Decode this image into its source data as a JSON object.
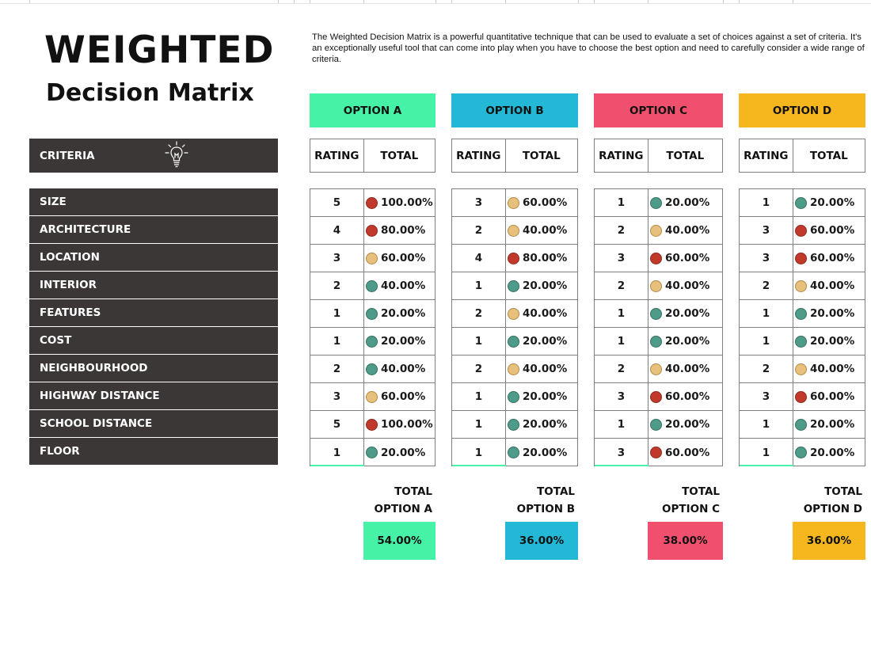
{
  "title": {
    "main": "WEIGHTED",
    "sub": "Decision Matrix",
    "description": "The Weighted Decision Matrix is a powerful quantitative technique that can be used to evaluate a set of choices against a set of criteria. It's an exceptionally useful tool that can come into play when you have to choose the best option and need to carefully consider a wide range of criteria."
  },
  "criteria": {
    "header": "CRITERIA",
    "icon": "lightbulb-icon",
    "items": [
      "SIZE",
      "ARCHITECTURE",
      "LOCATION",
      "INTERIOR",
      "FEATURES",
      "COST",
      "NEIGHBOURHOOD",
      "HIGHWAY DISTANCE",
      "SCHOOL DISTANCE",
      "FLOOR"
    ]
  },
  "columns": {
    "rating": "RATING",
    "total": "TOTAL"
  },
  "status_colors": {
    "red": "#c0392b",
    "amber": "#e7c07c",
    "green": "#4f9b8a"
  },
  "options": [
    {
      "name": "OPTION A",
      "color": "#45f2a6",
      "ratings": [
        "5",
        "4",
        "3",
        "2",
        "1",
        "1",
        "2",
        "3",
        "5",
        "1"
      ],
      "totals": [
        "100.00%",
        "80.00%",
        "60.00%",
        "40.00%",
        "20.00%",
        "20.00%",
        "40.00%",
        "60.00%",
        "100.00%",
        "20.00%"
      ],
      "status": [
        "red",
        "red",
        "amber",
        "green",
        "green",
        "green",
        "green",
        "amber",
        "red",
        "green"
      ],
      "total_label_1": "TOTAL",
      "total_label_2": "OPTION A",
      "total_value": "54.00%"
    },
    {
      "name": "OPTION B",
      "color": "#22b8d6",
      "ratings": [
        "3",
        "2",
        "4",
        "1",
        "2",
        "1",
        "2",
        "1",
        "1",
        "1"
      ],
      "totals": [
        "60.00%",
        "40.00%",
        "80.00%",
        "20.00%",
        "40.00%",
        "20.00%",
        "40.00%",
        "20.00%",
        "20.00%",
        "20.00%"
      ],
      "status": [
        "amber",
        "amber",
        "red",
        "green",
        "amber",
        "green",
        "amber",
        "green",
        "green",
        "green"
      ],
      "total_label_1": "TOTAL",
      "total_label_2": "OPTION B",
      "total_value": "36.00%"
    },
    {
      "name": "OPTION C",
      "color": "#f0506e",
      "ratings": [
        "1",
        "2",
        "3",
        "2",
        "1",
        "1",
        "2",
        "3",
        "1",
        "3"
      ],
      "totals": [
        "20.00%",
        "40.00%",
        "60.00%",
        "40.00%",
        "20.00%",
        "20.00%",
        "40.00%",
        "60.00%",
        "20.00%",
        "60.00%"
      ],
      "status": [
        "green",
        "amber",
        "red",
        "amber",
        "green",
        "green",
        "amber",
        "red",
        "green",
        "red"
      ],
      "total_label_1": "TOTAL",
      "total_label_2": "OPTION C",
      "total_value": "38.00%"
    },
    {
      "name": "OPTION D",
      "color": "#f5b61e",
      "ratings": [
        "1",
        "3",
        "3",
        "2",
        "1",
        "1",
        "2",
        "3",
        "1",
        "1"
      ],
      "totals": [
        "20.00%",
        "60.00%",
        "60.00%",
        "40.00%",
        "20.00%",
        "20.00%",
        "40.00%",
        "60.00%",
        "20.00%",
        "20.00%"
      ],
      "status": [
        "green",
        "red",
        "red",
        "amber",
        "green",
        "green",
        "amber",
        "red",
        "green",
        "green"
      ],
      "total_label_1": "TOTAL",
      "total_label_2": "OPTION D",
      "total_value": "36.00%"
    }
  ]
}
